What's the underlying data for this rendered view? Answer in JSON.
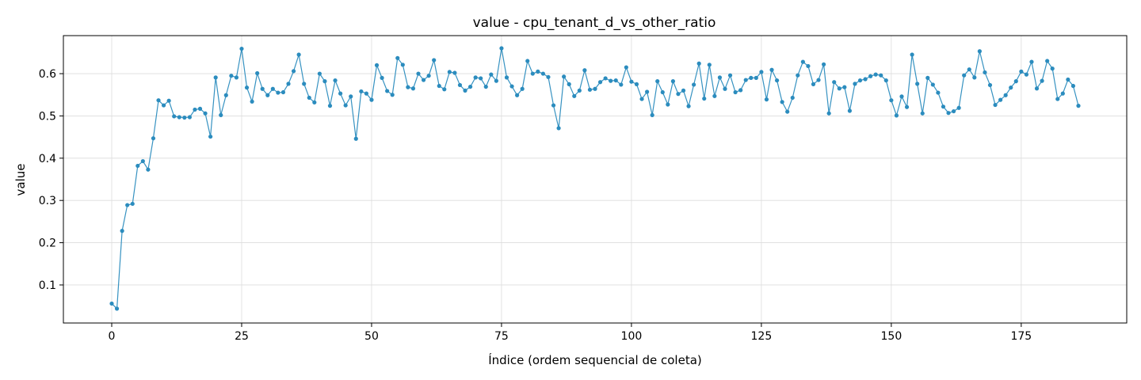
{
  "chart_data": {
    "type": "line",
    "title": "value - cpu_tenant_d_vs_other_ratio",
    "xlabel": "Índice (ordem sequencial de coleta)",
    "ylabel": "value",
    "xlim": [
      -9.3,
      195.3
    ],
    "ylim": [
      0.01,
      0.69
    ],
    "xticks": [
      0,
      25,
      50,
      75,
      100,
      125,
      150,
      175
    ],
    "yticks": [
      0.1,
      0.2,
      0.3,
      0.4,
      0.5,
      0.6
    ],
    "ytick_labels": [
      "0.1",
      "0.2",
      "0.3",
      "0.4",
      "0.5",
      "0.6"
    ],
    "grid": true,
    "marker": "circle",
    "color": "#2b8cbe",
    "series": [
      {
        "values": [
          0.056,
          0.044,
          0.228,
          0.289,
          0.292,
          0.382,
          0.393,
          0.373,
          0.447,
          0.537,
          0.525,
          0.536,
          0.499,
          0.497,
          0.496,
          0.497,
          0.515,
          0.517,
          0.506,
          0.451,
          0.591,
          0.502,
          0.549,
          0.595,
          0.591,
          0.659,
          0.567,
          0.534,
          0.601,
          0.564,
          0.549,
          0.564,
          0.555,
          0.556,
          0.576,
          0.606,
          0.645,
          0.576,
          0.543,
          0.532,
          0.6,
          0.582,
          0.524,
          0.584,
          0.553,
          0.525,
          0.546,
          0.446,
          0.558,
          0.553,
          0.538,
          0.62,
          0.59,
          0.559,
          0.55,
          0.637,
          0.621,
          0.568,
          0.565,
          0.6,
          0.585,
          0.595,
          0.632,
          0.571,
          0.563,
          0.604,
          0.602,
          0.573,
          0.56,
          0.569,
          0.591,
          0.589,
          0.569,
          0.598,
          0.583,
          0.66,
          0.591,
          0.57,
          0.549,
          0.564,
          0.63,
          0.6,
          0.605,
          0.6,
          0.592,
          0.525,
          0.471,
          0.593,
          0.575,
          0.547,
          0.56,
          0.608,
          0.562,
          0.564,
          0.58,
          0.589,
          0.583,
          0.584,
          0.574,
          0.615,
          0.581,
          0.575,
          0.54,
          0.557,
          0.502,
          0.582,
          0.556,
          0.527,
          0.582,
          0.552,
          0.56,
          0.523,
          0.574,
          0.624,
          0.541,
          0.621,
          0.547,
          0.591,
          0.564,
          0.596,
          0.556,
          0.561,
          0.585,
          0.59,
          0.59,
          0.604,
          0.539,
          0.609,
          0.584,
          0.533,
          0.51,
          0.543,
          0.596,
          0.628,
          0.618,
          0.575,
          0.585,
          0.622,
          0.506,
          0.58,
          0.565,
          0.568,
          0.512,
          0.576,
          0.584,
          0.587,
          0.594,
          0.598,
          0.596,
          0.584,
          0.537,
          0.501,
          0.546,
          0.521,
          0.645,
          0.576,
          0.506,
          0.59,
          0.574,
          0.555,
          0.522,
          0.507,
          0.511,
          0.519,
          0.596,
          0.61,
          0.591,
          0.653,
          0.603,
          0.573,
          0.526,
          0.538,
          0.549,
          0.567,
          0.582,
          0.605,
          0.598,
          0.628,
          0.565,
          0.583,
          0.63,
          0.612,
          0.54,
          0.553,
          0.586,
          0.571,
          0.524
        ]
      }
    ]
  }
}
